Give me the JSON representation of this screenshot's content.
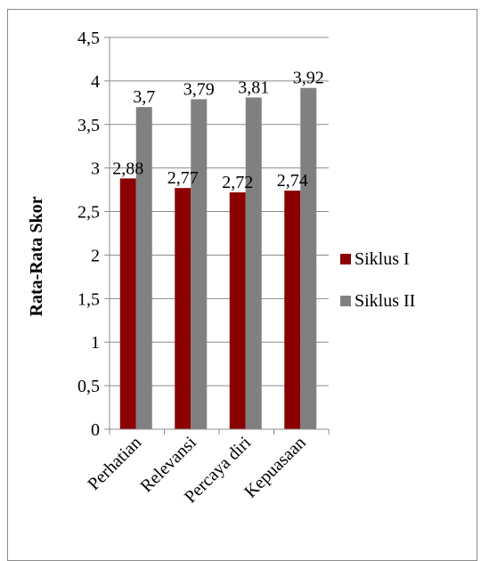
{
  "chart_data": {
    "type": "bar",
    "title": "",
    "xlabel": "",
    "ylabel": "Rata-Rata Skor",
    "categories": [
      "Perhatian",
      "Relevansi",
      "Percaya diri",
      "Kepuasaan"
    ],
    "series": [
      {
        "name": "Siklus I",
        "color": "#8B0000",
        "values": [
          2.88,
          2.77,
          2.72,
          2.74
        ],
        "labels": [
          "2,88",
          "2,77",
          "2,72",
          "2,74"
        ]
      },
      {
        "name": "Siklus II",
        "color": "#808080",
        "values": [
          3.7,
          3.79,
          3.81,
          3.92
        ],
        "labels": [
          "3,7",
          "3,79",
          "3,81",
          "3,92"
        ]
      }
    ],
    "ylim": [
      0,
      4.5
    ],
    "ytick_values": [
      0,
      0.5,
      1,
      1.5,
      2,
      2.5,
      3,
      3.5,
      4,
      4.5
    ],
    "ytick_labels": [
      "0",
      "0,5",
      "1",
      "1,5",
      "2",
      "2,5",
      "3",
      "3,5",
      "4",
      "4,5"
    ],
    "grid": "horizontal",
    "legend_position": "right"
  }
}
